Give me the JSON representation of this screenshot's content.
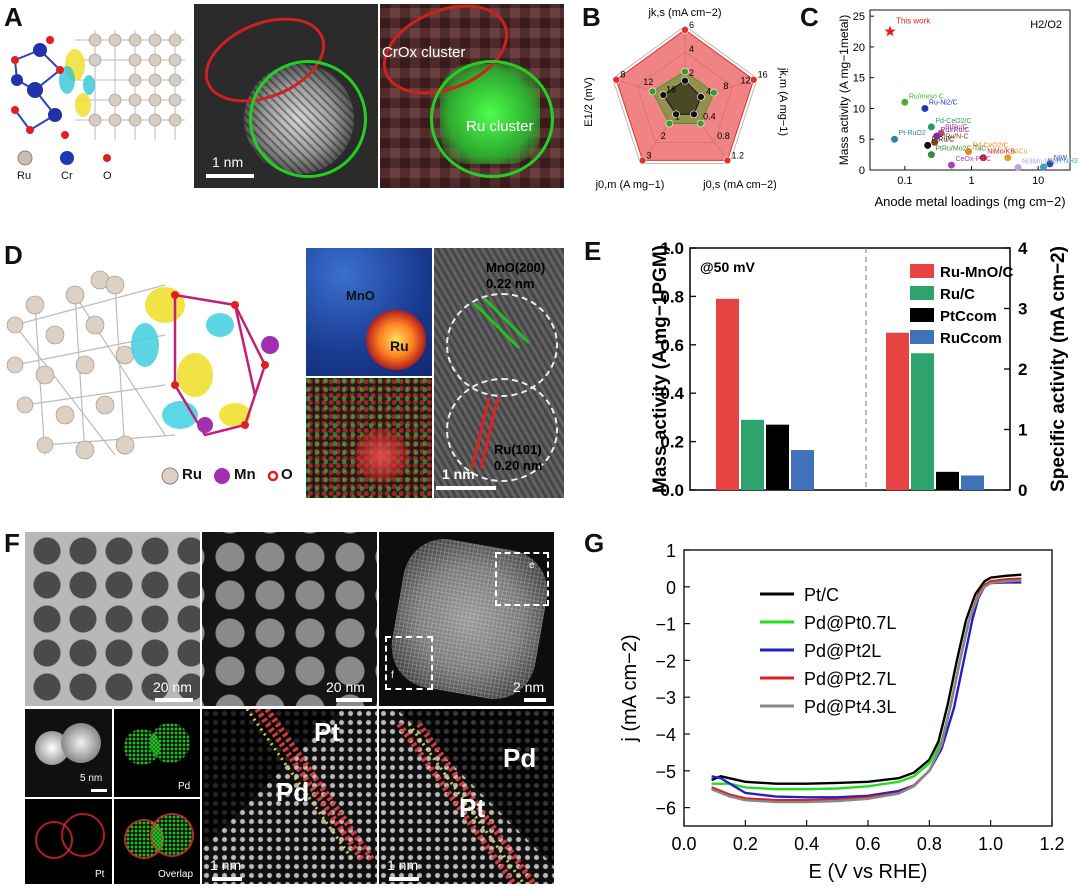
{
  "panels": {
    "A": {
      "label": "A",
      "legend": [
        "Ru",
        "Cr",
        "O"
      ],
      "scale": "1 nm",
      "cluster_crox": "CrOx cluster",
      "cluster_ru": "Ru cluster",
      "colors": {
        "ru": "#c9bfb3",
        "cr": "#1f35b8",
        "o": "#d8221c"
      }
    },
    "B": {
      "label": "B",
      "axes": {
        "top": "jk,s (mA cm−2)",
        "right": "jk,m (A mg−1)",
        "bottom_right": "j0,s (mA cm−2)",
        "bottom_left": "j0,m (A mg−1)",
        "left": "E1/2 (mV)"
      },
      "ticks": {
        "top": [
          "2",
          "4",
          "6"
        ],
        "right": [
          "4",
          "8",
          "12",
          "16"
        ],
        "bottom_right": [
          "0.4",
          "0.8",
          "1.2"
        ],
        "bottom_left": [
          "1",
          "2",
          "3"
        ],
        "left": [
          "16",
          "12",
          "8"
        ]
      }
    },
    "C": {
      "label": "C",
      "ylabel": "Mass activity (A mg−1metal)",
      "xlabel": "Anode metal loadings (mg cm−2)",
      "corner": "H2/O2",
      "this_work": "This work",
      "yticks": [
        "0",
        "5",
        "10",
        "15",
        "20",
        "25"
      ],
      "xticks": [
        "0.1",
        "1",
        "10"
      ],
      "annotations": [
        "Ru/meso C",
        "Ru-Ni2/C",
        "Pd-CeO2/C",
        "PtRu/C",
        "Pt-RuO2",
        "PtRu/N-C",
        "PtRu/C",
        "PdIrRu/C",
        "PtRu/Mo2C-TaC",
        "Pd-CeO2/C",
        "NiMo/KB",
        "NiCu",
        "CeOx-Pd/C",
        "Ni3Mo-Nb2",
        "NiW",
        "Ni-H-NH3"
      ]
    },
    "D": {
      "label": "D",
      "legend": [
        "Ru",
        "Mn",
        "O"
      ],
      "mno_label": "MnO",
      "ru_label": "Ru",
      "plane1": "MnO(200)",
      "spacing1": "0.22 nm",
      "plane2": "Ru(101)",
      "spacing2": "0.20 nm",
      "scale": "1 nm"
    },
    "E": {
      "label": "E",
      "panel_note": "@50 mV",
      "y_left_label": "Mass activity (A mg−1PGM)",
      "y_right_label": "Specific activity (mA cm−2)",
      "left_ticks": [
        "0.0",
        "0.2",
        "0.4",
        "0.6",
        "0.8",
        "1.0"
      ],
      "right_ticks": [
        "0",
        "1",
        "2",
        "3",
        "4"
      ],
      "colors": [
        "#e84343",
        "#2ea36b",
        "#000000",
        "#3f72b8"
      ]
    },
    "F": {
      "label": "F",
      "scales": [
        "20 nm",
        "20 nm",
        "2 nm",
        "5 nm",
        "1 nm",
        "1 nm"
      ],
      "roi_e": "e",
      "roi_f": "f",
      "map_labels": [
        "Pd",
        "Pt",
        "Overlap"
      ],
      "atom_labels": [
        "Pt",
        "Pd",
        "Pd",
        "Pt"
      ]
    },
    "G": {
      "label": "G",
      "legend": [
        "Pt/C",
        "Pd@Pt0.7L",
        "Pd@Pt2L",
        "Pd@Pt2.7L",
        "Pd@Pt4.3L"
      ],
      "xlabel": "E (V vs RHE)",
      "ylabel": "j (mA cm−2)",
      "xticks": [
        "0.0",
        "0.2",
        "0.4",
        "0.6",
        "0.8",
        "1.0",
        "1.2"
      ],
      "yticks": [
        "1",
        "0",
        "−1",
        "−2",
        "−3",
        "−4",
        "−5",
        "−6"
      ]
    }
  },
  "chart_data": [
    {
      "type": "bar",
      "id": "E",
      "title": "@50 mV",
      "groups": [
        "Mass activity",
        "Specific activity"
      ],
      "series": [
        {
          "name": "Ru-MnO/C",
          "values": [
            0.79,
            2.6
          ]
        },
        {
          "name": "Ru/C",
          "values": [
            0.29,
            2.26
          ]
        },
        {
          "name": "PtCcom",
          "values": [
            0.27,
            0.3
          ]
        },
        {
          "name": "RuCcom",
          "values": [
            0.165,
            0.24
          ]
        }
      ],
      "ylim_left": [
        0,
        1.0
      ],
      "ylim_right": [
        0,
        4
      ],
      "ylabel_left": "Mass activity (A mg−1PGM)",
      "ylabel_right": "Specific activity (mA cm−2)"
    },
    {
      "type": "line",
      "id": "G",
      "xlabel": "E (V vs RHE)",
      "ylabel": "j (mA cm−2)",
      "xlim": [
        0.0,
        1.2
      ],
      "ylim": [
        -6.5,
        1
      ],
      "series": [
        {
          "name": "Pt/C",
          "color": "#000000",
          "x": [
            0.09,
            0.12,
            0.2,
            0.3,
            0.4,
            0.5,
            0.6,
            0.7,
            0.75,
            0.8,
            0.83,
            0.86,
            0.89,
            0.92,
            0.95,
            0.98,
            1.0,
            1.05,
            1.1
          ],
          "y": [
            -5.25,
            -5.15,
            -5.3,
            -5.35,
            -5.35,
            -5.33,
            -5.3,
            -5.2,
            -5.05,
            -4.7,
            -4.2,
            -3.2,
            -2.0,
            -0.9,
            -0.2,
            0.15,
            0.25,
            0.3,
            0.33
          ]
        },
        {
          "name": "Pd@Pt0.7L",
          "color": "#22dd22",
          "x": [
            0.09,
            0.15,
            0.2,
            0.3,
            0.4,
            0.5,
            0.6,
            0.7,
            0.75,
            0.8,
            0.84,
            0.87,
            0.9,
            0.93,
            0.96,
            0.98,
            1.0,
            1.05,
            1.1
          ],
          "y": [
            -5.35,
            -5.35,
            -5.45,
            -5.5,
            -5.5,
            -5.48,
            -5.42,
            -5.3,
            -5.15,
            -4.8,
            -4.2,
            -3.2,
            -2.0,
            -0.9,
            -0.2,
            0.05,
            0.15,
            0.2,
            0.22
          ]
        },
        {
          "name": "Pd@Pt2L",
          "color": "#1f1fcc",
          "x": [
            0.09,
            0.12,
            0.2,
            0.3,
            0.4,
            0.5,
            0.6,
            0.7,
            0.75,
            0.8,
            0.84,
            0.88,
            0.91,
            0.94,
            0.96,
            0.98,
            1.0,
            1.05,
            1.1
          ],
          "y": [
            -5.15,
            -5.2,
            -5.6,
            -5.7,
            -5.72,
            -5.72,
            -5.68,
            -5.55,
            -5.4,
            -5.0,
            -4.4,
            -3.3,
            -2.1,
            -0.9,
            -0.3,
            0.0,
            0.1,
            0.12,
            0.12
          ]
        },
        {
          "name": "Pd@Pt2.7L",
          "color": "#dd2020",
          "x": [
            0.09,
            0.15,
            0.2,
            0.3,
            0.4,
            0.5,
            0.6,
            0.7,
            0.75,
            0.8,
            0.84,
            0.87,
            0.9,
            0.93,
            0.96,
            0.98,
            1.0,
            1.05,
            1.1
          ],
          "y": [
            -5.45,
            -5.65,
            -5.75,
            -5.8,
            -5.8,
            -5.78,
            -5.72,
            -5.6,
            -5.4,
            -5.0,
            -4.3,
            -3.2,
            -2.0,
            -0.9,
            -0.2,
            0.05,
            0.15,
            0.2,
            0.22
          ]
        },
        {
          "name": "Pd@Pt4.3L",
          "color": "#888888",
          "x": [
            0.09,
            0.15,
            0.2,
            0.3,
            0.4,
            0.5,
            0.6,
            0.7,
            0.75,
            0.8,
            0.84,
            0.87,
            0.9,
            0.93,
            0.96,
            0.98,
            1.0,
            1.05,
            1.1
          ],
          "y": [
            -5.5,
            -5.7,
            -5.8,
            -5.85,
            -5.85,
            -5.82,
            -5.76,
            -5.62,
            -5.42,
            -5.0,
            -4.3,
            -3.2,
            -2.0,
            -0.9,
            -0.25,
            0.0,
            0.1,
            0.15,
            0.17
          ]
        }
      ]
    },
    {
      "type": "scatter",
      "id": "C",
      "xlabel": "Anode metal loadings (mg cm−2)",
      "ylabel": "Mass activity (A mg−1metal)",
      "xscale": "log",
      "xlim": [
        0.03,
        30
      ],
      "ylim": [
        0,
        26
      ],
      "points": [
        {
          "name": "This work",
          "x": 0.06,
          "y": 22.5,
          "color": "#e02020",
          "marker": "star"
        },
        {
          "name": "Ru/meso C",
          "x": 0.1,
          "y": 11,
          "color": "#4caf3a"
        },
        {
          "name": "Ru-Ni2/C",
          "x": 0.2,
          "y": 10,
          "color": "#2233bb"
        },
        {
          "name": "Pd-CeO2/C",
          "x": 0.25,
          "y": 7,
          "color": "#2a9a5a"
        },
        {
          "name": "PtRu/C",
          "x": 0.35,
          "y": 6,
          "color": "#c04c8f"
        },
        {
          "name": "Pt-RuO2",
          "x": 0.07,
          "y": 5,
          "color": "#2a8aa0"
        },
        {
          "name": "PtRu/N-C",
          "x": 0.28,
          "y": 4.5,
          "color": "#8b4513"
        },
        {
          "name": "PdIrRu/C",
          "x": 0.22,
          "y": 4,
          "color": "#111111"
        },
        {
          "name": "PtRu/C",
          "x": 0.3,
          "y": 5.5,
          "color": "#7a2a9a"
        },
        {
          "name": "Pd-CeO2/C",
          "x": 0.25,
          "y": 2.5,
          "color": "#3a8a3a"
        },
        {
          "name": "PtRu/Mo2C-TaC",
          "x": 0.9,
          "y": 3,
          "color": "#e08a10"
        },
        {
          "name": "NiMo/KB",
          "x": 1.5,
          "y": 2,
          "color": "#c01a1a"
        },
        {
          "name": "NiCu",
          "x": 3.5,
          "y": 2,
          "color": "#e0a020"
        },
        {
          "name": "CeOx-Pd/C",
          "x": 0.5,
          "y": 0.8,
          "color": "#b040c0"
        },
        {
          "name": "Ni3Mo-Nb2",
          "x": 5,
          "y": 0.4,
          "color": "#c0a0e0"
        },
        {
          "name": "NiW",
          "x": 15,
          "y": 1.0,
          "color": "#2a4aaa"
        },
        {
          "name": "Ni-H-NH3",
          "x": 12,
          "y": 0.5,
          "color": "#3aa0c0"
        }
      ]
    },
    {
      "type": "radar",
      "id": "B",
      "axes": [
        "jk,s (mA cm−2)",
        "jk,m (A mg−1)",
        "j0,s (mA cm−2)",
        "j0,m (A mg−1)",
        "E1/2 (mV)"
      ],
      "series": [
        {
          "name": "red",
          "color": "#e03030",
          "values": [
            0.95,
            0.95,
            0.95,
            0.95,
            0.95
          ]
        },
        {
          "name": "green",
          "color": "#3a9a2a",
          "values": [
            0.4,
            0.4,
            0.35,
            0.35,
            0.45
          ]
        },
        {
          "name": "black",
          "color": "#111111",
          "values": [
            0.28,
            0.22,
            0.2,
            0.2,
            0.3
          ]
        }
      ]
    }
  ]
}
